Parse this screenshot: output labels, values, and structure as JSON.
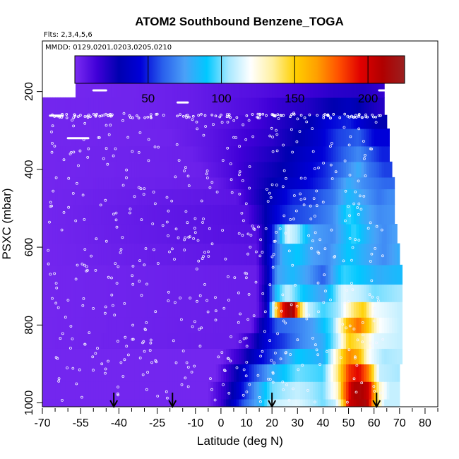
{
  "chart_data": {
    "type": "heatmap",
    "title": "ATOM2 Southbound Benzene_TOGA",
    "annotations": {
      "flights": "Flts: 2,3,4,5,6",
      "dates": "MMDD: 0129,0201,0203,0205,0210"
    },
    "xlabel": "Latitude (deg N)",
    "ylabel": "PSXC (mbar)",
    "xlim": [
      -70,
      85
    ],
    "ylim": [
      1010,
      70
    ],
    "y_reversed": true,
    "x_ticks": [
      -70,
      -55,
      -40,
      -25,
      -10,
      0,
      10,
      20,
      30,
      40,
      50,
      60,
      70,
      80
    ],
    "x_minor_ticks": [
      -65,
      -60,
      -50,
      -45,
      -35,
      -30,
      -20,
      -15,
      -5,
      5,
      15,
      25,
      35,
      45,
      55,
      65,
      75,
      85
    ],
    "y_ticks": [
      200,
      400,
      600,
      800,
      1000
    ],
    "colorbar": {
      "min": 0,
      "max": 225,
      "ticks": [
        50,
        100,
        150,
        200
      ],
      "colors": [
        "#7b2cf2",
        "#4000d8",
        "#0000b0",
        "#0000d8",
        "#2a60ec",
        "#4aa0f8",
        "#00c8ff",
        "#a8e8ff",
        "#ffffff",
        "#fff0a0",
        "#ffd000",
        "#ffa000",
        "#ff5000",
        "#e00000",
        "#b00000",
        "#9a2020"
      ]
    },
    "arrow_latitudes": [
      -42,
      -19,
      20,
      61
    ],
    "layers": [
      {
        "p": [
          990,
          1010
        ],
        "v": [
          [
            -70,
            2
          ],
          [
            -5,
            2
          ],
          [
            0,
            15
          ],
          [
            5,
            40
          ],
          [
            9,
            60
          ],
          [
            15,
            80
          ],
          [
            20,
            110
          ],
          [
            30,
            115
          ],
          [
            40,
            100
          ],
          [
            45,
            110
          ],
          [
            48,
            150
          ],
          [
            50,
            200
          ],
          [
            54,
            210
          ],
          [
            57,
            215
          ],
          [
            60,
            160
          ],
          [
            64,
            110
          ]
        ]
      },
      {
        "p": [
          945,
          990
        ],
        "v": [
          [
            -70,
            2
          ],
          [
            -5,
            2
          ],
          [
            2,
            20
          ],
          [
            8,
            45
          ],
          [
            14,
            75
          ],
          [
            20,
            100
          ],
          [
            30,
            110
          ],
          [
            40,
            100
          ],
          [
            46,
            130
          ],
          [
            48,
            170
          ],
          [
            52,
            210
          ],
          [
            55,
            212
          ],
          [
            58,
            200
          ],
          [
            62,
            130
          ],
          [
            66,
            110
          ]
        ]
      },
      {
        "p": [
          900,
          945
        ],
        "v": [
          [
            -70,
            2
          ],
          [
            -2,
            2
          ],
          [
            5,
            25
          ],
          [
            10,
            45
          ],
          [
            20,
            80
          ],
          [
            30,
            100
          ],
          [
            40,
            95
          ],
          [
            46,
            140
          ],
          [
            50,
            185
          ],
          [
            54,
            195
          ],
          [
            58,
            170
          ],
          [
            62,
            110
          ],
          [
            70,
            105
          ]
        ]
      },
      {
        "p": [
          860,
          900
        ],
        "v": [
          [
            -70,
            2
          ],
          [
            0,
            2
          ],
          [
            8,
            20
          ],
          [
            14,
            40
          ],
          [
            22,
            60
          ],
          [
            30,
            90
          ],
          [
            40,
            80
          ],
          [
            46,
            135
          ],
          [
            50,
            170
          ],
          [
            54,
            160
          ],
          [
            58,
            120
          ],
          [
            64,
            105
          ],
          [
            70,
            108
          ]
        ]
      },
      {
        "p": [
          820,
          860
        ],
        "v": [
          [
            -70,
            2
          ],
          [
            6,
            5
          ],
          [
            12,
            20
          ],
          [
            18,
            45
          ],
          [
            25,
            55
          ],
          [
            32,
            70
          ],
          [
            40,
            80
          ],
          [
            46,
            110
          ],
          [
            50,
            150
          ],
          [
            55,
            140
          ],
          [
            60,
            115
          ],
          [
            70,
            110
          ]
        ]
      },
      {
        "p": [
          780,
          820
        ],
        "v": [
          [
            -70,
            2
          ],
          [
            12,
            5
          ],
          [
            16,
            30
          ],
          [
            22,
            60
          ],
          [
            28,
            65
          ],
          [
            36,
            75
          ],
          [
            44,
            100
          ],
          [
            50,
            160
          ],
          [
            54,
            175
          ],
          [
            58,
            150
          ],
          [
            62,
            120
          ],
          [
            70,
            110
          ]
        ]
      },
      {
        "p": [
          740,
          780
        ],
        "v": [
          [
            -70,
            2
          ],
          [
            14,
            5
          ],
          [
            18,
            30
          ],
          [
            22,
            160
          ],
          [
            25,
            200
          ],
          [
            28,
            220
          ],
          [
            31,
            150
          ],
          [
            34,
            110
          ],
          [
            40,
            95
          ],
          [
            46,
            105
          ],
          [
            52,
            140
          ],
          [
            56,
            150
          ],
          [
            60,
            118
          ],
          [
            70,
            110
          ]
        ]
      },
      {
        "p": [
          695,
          740
        ],
        "v": [
          [
            -70,
            2
          ],
          [
            14,
            5
          ],
          [
            18,
            35
          ],
          [
            22,
            90
          ],
          [
            26,
            110
          ],
          [
            32,
            90
          ],
          [
            40,
            75
          ],
          [
            48,
            115
          ],
          [
            54,
            110
          ],
          [
            60,
            100
          ],
          [
            70,
            105
          ]
        ]
      },
      {
        "p": [
          645,
          695
        ],
        "v": [
          [
            -70,
            2
          ],
          [
            14,
            5
          ],
          [
            18,
            30
          ],
          [
            22,
            75
          ],
          [
            28,
            85
          ],
          [
            34,
            75
          ],
          [
            40,
            60
          ],
          [
            48,
            95
          ],
          [
            54,
            90
          ],
          [
            62,
            80
          ],
          [
            70,
            85
          ]
        ]
      },
      {
        "p": [
          590,
          645
        ],
        "v": [
          [
            -70,
            2
          ],
          [
            14,
            8
          ],
          [
            18,
            35
          ],
          [
            24,
            80
          ],
          [
            30,
            90
          ],
          [
            36,
            75
          ],
          [
            42,
            70
          ],
          [
            50,
            90
          ],
          [
            56,
            80
          ],
          [
            64,
            70
          ],
          [
            70,
            80
          ]
        ]
      },
      {
        "p": [
          540,
          590
        ],
        "v": [
          [
            -70,
            2
          ],
          [
            14,
            10
          ],
          [
            20,
            45
          ],
          [
            26,
            115
          ],
          [
            30,
            105
          ],
          [
            36,
            75
          ],
          [
            44,
            70
          ],
          [
            52,
            95
          ],
          [
            58,
            80
          ],
          [
            64,
            70
          ],
          [
            68,
            75
          ]
        ]
      },
      {
        "p": [
          490,
          540
        ],
        "v": [
          [
            -70,
            2
          ],
          [
            10,
            10
          ],
          [
            16,
            25
          ],
          [
            22,
            45
          ],
          [
            28,
            55
          ],
          [
            36,
            60
          ],
          [
            44,
            70
          ],
          [
            50,
            95
          ],
          [
            56,
            80
          ],
          [
            62,
            70
          ],
          [
            66,
            72
          ]
        ]
      },
      {
        "p": [
          450,
          490
        ],
        "v": [
          [
            -70,
            2
          ],
          [
            6,
            8
          ],
          [
            12,
            20
          ],
          [
            20,
            35
          ],
          [
            28,
            50
          ],
          [
            36,
            55
          ],
          [
            44,
            65
          ],
          [
            50,
            85
          ],
          [
            56,
            75
          ],
          [
            62,
            65
          ],
          [
            66,
            70
          ]
        ]
      },
      {
        "p": [
          420,
          450
        ],
        "v": [
          [
            -70,
            2
          ],
          [
            -2,
            5
          ],
          [
            8,
            15
          ],
          [
            16,
            25
          ],
          [
            24,
            35
          ],
          [
            34,
            45
          ],
          [
            42,
            55
          ],
          [
            50,
            80
          ],
          [
            56,
            70
          ],
          [
            64,
            62
          ]
        ]
      },
      {
        "p": [
          380,
          420
        ],
        "v": [
          [
            -70,
            2
          ],
          [
            -8,
            4
          ],
          [
            4,
            12
          ],
          [
            14,
            22
          ],
          [
            24,
            30
          ],
          [
            32,
            40
          ],
          [
            40,
            50
          ],
          [
            48,
            65
          ],
          [
            54,
            80
          ],
          [
            58,
            65
          ],
          [
            64,
            55
          ]
        ]
      },
      {
        "p": [
          340,
          380
        ],
        "v": [
          [
            -70,
            2
          ],
          [
            -12,
            4
          ],
          [
            0,
            10
          ],
          [
            12,
            18
          ],
          [
            22,
            25
          ],
          [
            30,
            35
          ],
          [
            40,
            45
          ],
          [
            48,
            60
          ],
          [
            54,
            70
          ],
          [
            58,
            60
          ],
          [
            63,
            50
          ]
        ]
      },
      {
        "p": [
          295,
          340
        ],
        "v": [
          [
            -70,
            2
          ],
          [
            -20,
            3
          ],
          [
            -4,
            8
          ],
          [
            8,
            14
          ],
          [
            20,
            20
          ],
          [
            30,
            30
          ],
          [
            38,
            40
          ],
          [
            46,
            55
          ],
          [
            54,
            60
          ],
          [
            60,
            45
          ]
        ]
      },
      {
        "p": [
          260,
          295
        ],
        "v": [
          [
            -70,
            2
          ],
          [
            -25,
            3
          ],
          [
            -8,
            6
          ],
          [
            4,
            10
          ],
          [
            16,
            16
          ],
          [
            26,
            24
          ],
          [
            34,
            30
          ],
          [
            42,
            45
          ],
          [
            50,
            50
          ],
          [
            56,
            40
          ],
          [
            62,
            30
          ]
        ]
      },
      {
        "p": [
          215,
          260
        ],
        "v": [
          [
            -70,
            2
          ],
          [
            -30,
            3
          ],
          [
            -12,
            5
          ],
          [
            0,
            8
          ],
          [
            14,
            12
          ],
          [
            24,
            18
          ],
          [
            34,
            22
          ],
          [
            44,
            30
          ],
          [
            50,
            35
          ],
          [
            56,
            28
          ],
          [
            62,
            22
          ]
        ]
      },
      {
        "p": [
          165,
          215
        ],
        "v": [
          [
            -57,
            2
          ],
          [
            -30,
            3
          ],
          [
            -12,
            5
          ],
          [
            0,
            8
          ],
          [
            14,
            10
          ],
          [
            30,
            14
          ],
          [
            44,
            20
          ],
          [
            56,
            22
          ],
          [
            63,
            18
          ]
        ]
      }
    ],
    "layer_extents": [
      [
        -70,
        70
      ],
      [
        -70,
        70
      ],
      [
        -70,
        70
      ],
      [
        -70,
        71
      ],
      [
        -70,
        71
      ],
      [
        -70,
        71
      ],
      [
        -70,
        71
      ],
      [
        -70,
        71
      ],
      [
        -70,
        71
      ],
      [
        -70,
        70
      ],
      [
        -70,
        69
      ],
      [
        -70,
        68
      ],
      [
        -70,
        68
      ],
      [
        -70,
        68
      ],
      [
        -70,
        67
      ],
      [
        -70,
        66
      ],
      [
        -70,
        66
      ],
      [
        -70,
        65
      ],
      [
        -70,
        64
      ],
      [
        -57,
        64
      ]
    ]
  }
}
